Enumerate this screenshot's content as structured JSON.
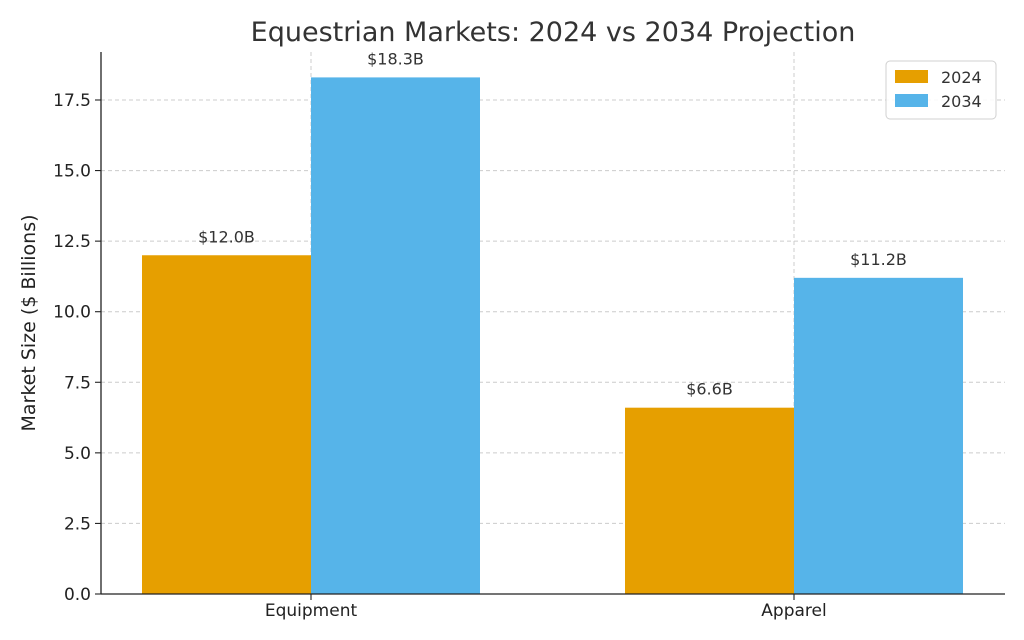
{
  "chart_data": {
    "type": "bar",
    "title": "Equestrian Markets: 2024 vs 2034 Projection",
    "xlabel": "",
    "ylabel": "Market Size ($ Billions)",
    "categories": [
      "Equipment",
      "Apparel"
    ],
    "series": [
      {
        "name": "2024",
        "values": [
          12.0,
          6.6
        ],
        "labels": [
          "$12.0B",
          "$6.6B"
        ],
        "color": "#e69f00"
      },
      {
        "name": "2034",
        "values": [
          18.3,
          11.2
        ],
        "labels": [
          "$18.3B",
          "$11.2B"
        ],
        "color": "#56b4e9"
      }
    ],
    "ylim": [
      0,
      19.2
    ],
    "yticks": [
      0,
      2.5,
      5,
      7.5,
      10,
      12.5,
      15,
      17.5
    ],
    "ytick_labels": [
      "0.0",
      "2.5",
      "5.0",
      "7.5",
      "10.0",
      "12.5",
      "15.0",
      "17.5"
    ],
    "grid": true,
    "legend_position": "top-right"
  }
}
